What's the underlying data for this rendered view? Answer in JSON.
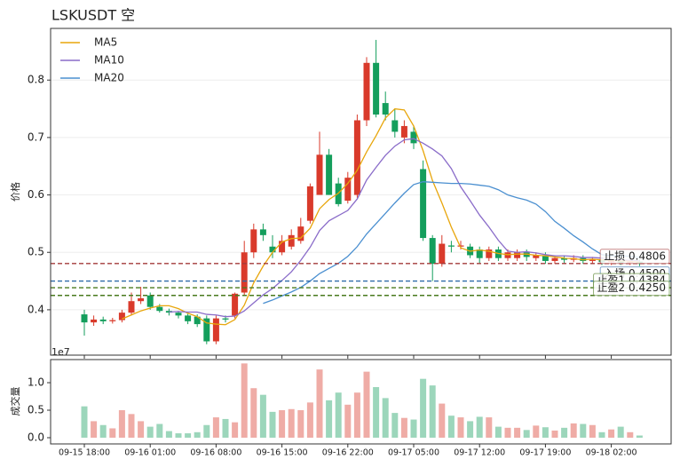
{
  "chart_data": {
    "type": "candlestick",
    "title": "LSKUSDT  空",
    "ylabel": "价格",
    "x": [
      "09-15 18:00",
      "09-15 19:00",
      "09-15 20:00",
      "09-15 21:00",
      "09-15 22:00",
      "09-15 23:00",
      "09-16 00:00",
      "09-16 01:00",
      "09-16 02:00",
      "09-16 03:00",
      "09-16 04:00",
      "09-16 05:00",
      "09-16 06:00",
      "09-16 07:00",
      "09-16 08:00",
      "09-16 09:00",
      "09-16 10:00",
      "09-16 11:00",
      "09-16 12:00",
      "09-16 13:00",
      "09-16 14:00",
      "09-16 15:00",
      "09-16 16:00",
      "09-16 17:00",
      "09-16 18:00",
      "09-16 19:00",
      "09-16 20:00",
      "09-16 21:00",
      "09-16 22:00",
      "09-16 23:00",
      "09-17 00:00",
      "09-17 01:00",
      "09-17 02:00",
      "09-17 03:00",
      "09-17 04:00",
      "09-17 05:00",
      "09-17 06:00",
      "09-17 07:00",
      "09-17 08:00",
      "09-17 09:00",
      "09-17 10:00",
      "09-17 11:00",
      "09-17 12:00",
      "09-17 13:00",
      "09-17 14:00",
      "09-17 15:00",
      "09-17 16:00",
      "09-17 17:00",
      "09-17 18:00",
      "09-17 19:00",
      "09-17 20:00",
      "09-17 21:00",
      "09-17 22:00",
      "09-17 23:00",
      "09-18 00:00",
      "09-18 01:00",
      "09-18 02:00",
      "09-18 03:00",
      "09-18 04:00",
      "09-18 05:00"
    ],
    "open": [
      0.392,
      0.378,
      0.383,
      0.38,
      0.382,
      0.395,
      0.415,
      0.425,
      0.405,
      0.398,
      0.395,
      0.39,
      0.388,
      0.385,
      0.345,
      0.385,
      0.39,
      0.43,
      0.5,
      0.54,
      0.51,
      0.5,
      0.51,
      0.52,
      0.555,
      0.6,
      0.67,
      0.62,
      0.59,
      0.6,
      0.73,
      0.83,
      0.76,
      0.73,
      0.7,
      0.71,
      0.645,
      0.525,
      0.48,
      0.512,
      0.51,
      0.51,
      0.505,
      0.49,
      0.505,
      0.49,
      0.49,
      0.5,
      0.49,
      0.495,
      0.485,
      0.49,
      0.487,
      0.49,
      0.485,
      0.488,
      0.483,
      0.486,
      0.482,
      0.484
    ],
    "high": [
      0.4,
      0.39,
      0.388,
      0.386,
      0.4,
      0.43,
      0.44,
      0.43,
      0.41,
      0.402,
      0.398,
      0.393,
      0.392,
      0.39,
      0.39,
      0.39,
      0.43,
      0.52,
      0.55,
      0.55,
      0.53,
      0.53,
      0.54,
      0.56,
      0.62,
      0.71,
      0.68,
      0.63,
      0.64,
      0.74,
      0.84,
      0.87,
      0.78,
      0.75,
      0.73,
      0.72,
      0.66,
      0.53,
      0.53,
      0.52,
      0.52,
      0.515,
      0.51,
      0.51,
      0.51,
      0.505,
      0.505,
      0.505,
      0.5,
      0.5,
      0.495,
      0.495,
      0.495,
      0.495,
      0.492,
      0.492,
      0.49,
      0.49,
      0.488,
      0.488
    ],
    "low": [
      0.355,
      0.372,
      0.375,
      0.376,
      0.378,
      0.39,
      0.41,
      0.4,
      0.395,
      0.39,
      0.385,
      0.375,
      0.37,
      0.34,
      0.34,
      0.378,
      0.385,
      0.425,
      0.49,
      0.52,
      0.49,
      0.495,
      0.505,
      0.515,
      0.55,
      0.6,
      0.6,
      0.58,
      0.585,
      0.595,
      0.72,
      0.735,
      0.73,
      0.7,
      0.69,
      0.68,
      0.52,
      0.45,
      0.475,
      0.5,
      0.505,
      0.49,
      0.48,
      0.485,
      0.485,
      0.485,
      0.485,
      0.485,
      0.485,
      0.48,
      0.48,
      0.48,
      0.483,
      0.48,
      0.48,
      0.478,
      0.478,
      0.478,
      0.478,
      0.476
    ],
    "close": [
      0.378,
      0.383,
      0.38,
      0.382,
      0.395,
      0.415,
      0.42,
      0.405,
      0.398,
      0.395,
      0.39,
      0.38,
      0.375,
      0.345,
      0.385,
      0.383,
      0.428,
      0.5,
      0.54,
      0.53,
      0.5,
      0.52,
      0.53,
      0.545,
      0.615,
      0.67,
      0.6,
      0.584,
      0.63,
      0.73,
      0.83,
      0.74,
      0.74,
      0.71,
      0.72,
      0.69,
      0.525,
      0.48,
      0.515,
      0.51,
      0.512,
      0.495,
      0.49,
      0.505,
      0.49,
      0.5,
      0.5,
      0.492,
      0.495,
      0.485,
      0.49,
      0.487,
      0.49,
      0.485,
      0.488,
      0.483,
      0.486,
      0.482,
      0.484,
      0.481
    ],
    "up_color": "#d93a2b",
    "down_color": "#149e5c",
    "series": [
      {
        "name": "MA5",
        "color": "#e8a60c",
        "values": [
          null,
          null,
          null,
          null,
          0.384,
          0.391,
          0.398,
          0.403,
          0.407,
          0.407,
          0.402,
          0.394,
          0.388,
          0.377,
          0.375,
          0.374,
          0.383,
          0.408,
          0.447,
          0.476,
          0.5,
          0.518,
          0.524,
          0.525,
          0.542,
          0.576,
          0.592,
          0.603,
          0.62,
          0.643,
          0.675,
          0.703,
          0.734,
          0.75,
          0.748,
          0.72,
          0.677,
          0.625,
          0.586,
          0.544,
          0.508,
          0.502,
          0.504,
          0.502,
          0.498,
          0.496,
          0.497,
          0.497,
          0.495,
          0.494,
          0.492,
          0.49,
          0.489,
          0.487,
          0.488,
          0.487,
          0.486,
          0.485,
          0.485,
          0.483
        ]
      },
      {
        "name": "MA10",
        "color": "#8a6cc9",
        "values": [
          null,
          null,
          null,
          null,
          null,
          null,
          null,
          null,
          null,
          0.396,
          0.397,
          0.396,
          0.396,
          0.392,
          0.391,
          0.388,
          0.389,
          0.398,
          0.412,
          0.426,
          0.437,
          0.451,
          0.466,
          0.486,
          0.509,
          0.538,
          0.555,
          0.564,
          0.573,
          0.593,
          0.626,
          0.648,
          0.669,
          0.685,
          0.696,
          0.698,
          0.69,
          0.68,
          0.668,
          0.646,
          0.614,
          0.59,
          0.565,
          0.544,
          0.521,
          0.502,
          0.5,
          0.501,
          0.499,
          0.496,
          0.494,
          0.494,
          0.493,
          0.491,
          0.491,
          0.49,
          0.488,
          0.487,
          0.486,
          0.485
        ]
      },
      {
        "name": "MA20",
        "color": "#4a8fd0",
        "values": [
          null,
          null,
          null,
          null,
          null,
          null,
          null,
          null,
          null,
          null,
          null,
          null,
          null,
          null,
          null,
          null,
          null,
          null,
          null,
          0.411,
          0.417,
          0.424,
          0.431,
          0.439,
          0.45,
          0.463,
          0.472,
          0.481,
          0.493,
          0.51,
          0.532,
          0.55,
          0.568,
          0.586,
          0.603,
          0.618,
          0.623,
          0.622,
          0.621,
          0.62,
          0.62,
          0.619,
          0.617,
          0.615,
          0.609,
          0.6,
          0.595,
          0.591,
          0.584,
          0.571,
          0.554,
          0.542,
          0.529,
          0.518,
          0.506,
          0.496,
          0.494,
          0.494,
          0.493,
          0.491
        ]
      }
    ],
    "levels": [
      {
        "value": 0.4806,
        "label": "止损 0.4806",
        "color": "#a33a3a"
      },
      {
        "value": 0.45,
        "label": "入场 0.4500",
        "color": "#2e6aa8"
      },
      {
        "value": 0.4384,
        "label": "止盈1 0.4384",
        "color": "#4a7a1e"
      },
      {
        "value": 0.425,
        "label": "止盈2 0.4250",
        "color": "#4a7a1e"
      }
    ],
    "ylim": [
      0.321,
      0.89
    ],
    "yticks": [
      0.4,
      0.5,
      0.6,
      0.7,
      0.8
    ],
    "grid": true,
    "legend": "upper left",
    "xticks": [
      "09-15 18:00",
      "09-16 01:00",
      "09-16 08:00",
      "09-16 15:00",
      "09-16 22:00",
      "09-17 05:00",
      "09-17 12:00",
      "09-17 19:00",
      "09-18 02:00"
    ],
    "volume": {
      "ylabel": "成交量",
      "offset_label": "1e7",
      "ylim": [
        0,
        1.42
      ],
      "yticks": [
        {
          "value": 0,
          "label": "0.0"
        },
        0.5,
        {
          "value": 1,
          "label": "1.0"
        }
      ],
      "values": [
        0.57,
        0.3,
        0.23,
        0.17,
        0.5,
        0.43,
        0.3,
        0.2,
        0.25,
        0.12,
        0.08,
        0.08,
        0.1,
        0.23,
        0.37,
        0.34,
        0.28,
        1.35,
        0.9,
        0.78,
        0.47,
        0.5,
        0.52,
        0.5,
        0.64,
        1.24,
        0.68,
        0.82,
        0.6,
        0.82,
        1.2,
        0.92,
        0.72,
        0.45,
        0.36,
        0.33,
        1.07,
        0.95,
        0.62,
        0.4,
        0.37,
        0.3,
        0.38,
        0.37,
        0.2,
        0.18,
        0.18,
        0.14,
        0.22,
        0.19,
        0.13,
        0.18,
        0.26,
        0.25,
        0.23,
        0.1,
        0.15,
        0.2,
        0.1,
        0.04
      ]
    }
  }
}
